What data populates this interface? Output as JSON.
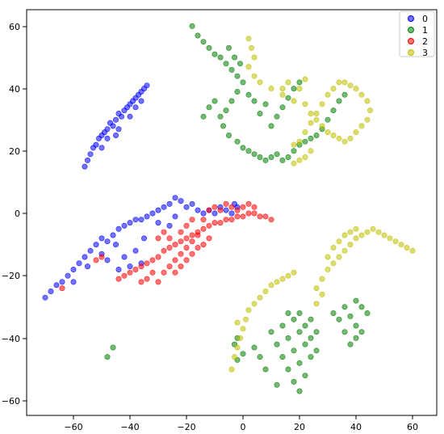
{
  "chart_data": {
    "type": "scatter",
    "title": "",
    "xlabel": "",
    "ylabel": "",
    "xlim": [
      -76,
      66
    ],
    "ylim": [
      -65,
      66
    ],
    "x_ticks": [
      "−60",
      "−40",
      "−20",
      "0",
      "20",
      "40",
      "60"
    ],
    "y_ticks": [
      "−60",
      "−40",
      "−20",
      "0",
      "20",
      "40",
      "60"
    ],
    "grid": false,
    "legend_position": "top-right",
    "series": [
      {
        "name": "0",
        "color": "#0000ff",
        "points": [
          [
            -56,
            15
          ],
          [
            -55,
            17
          ],
          [
            -54,
            19
          ],
          [
            -53,
            21
          ],
          [
            -52,
            22
          ],
          [
            -51,
            24
          ],
          [
            -50,
            25
          ],
          [
            -49,
            26
          ],
          [
            -48,
            27
          ],
          [
            -47,
            29
          ],
          [
            -46,
            28
          ],
          [
            -45,
            30
          ],
          [
            -44,
            32
          ],
          [
            -43,
            31
          ],
          [
            -42,
            33
          ],
          [
            -41,
            34
          ],
          [
            -40,
            35
          ],
          [
            -39,
            36
          ],
          [
            -38,
            37
          ],
          [
            -37,
            38
          ],
          [
            -36,
            39
          ],
          [
            -35,
            40
          ],
          [
            -34,
            41
          ],
          [
            -36,
            36
          ],
          [
            -40,
            31
          ],
          [
            -44,
            27
          ],
          [
            -48,
            24
          ],
          [
            -50,
            21
          ],
          [
            -45,
            25
          ],
          [
            -38,
            34
          ],
          [
            -70,
            -27
          ],
          [
            -68,
            -25
          ],
          [
            -66,
            -23
          ],
          [
            -64,
            -22
          ],
          [
            -62,
            -20
          ],
          [
            -60,
            -18
          ],
          [
            -58,
            -16
          ],
          [
            -56,
            -14
          ],
          [
            -54,
            -12
          ],
          [
            -52,
            -10
          ],
          [
            -50,
            -8
          ],
          [
            -48,
            -9
          ],
          [
            -46,
            -7
          ],
          [
            -44,
            -5
          ],
          [
            -42,
            -4
          ],
          [
            -40,
            -3
          ],
          [
            -38,
            -2
          ],
          [
            -36,
            -2
          ],
          [
            -34,
            -1
          ],
          [
            -32,
            0
          ],
          [
            -30,
            1
          ],
          [
            -28,
            2
          ],
          [
            -26,
            3
          ],
          [
            -24,
            5
          ],
          [
            -22,
            4
          ],
          [
            -20,
            2
          ],
          [
            -18,
            3
          ],
          [
            -16,
            1
          ],
          [
            -14,
            0
          ],
          [
            -12,
            1
          ],
          [
            -10,
            0
          ],
          [
            -8,
            2
          ],
          [
            -6,
            1
          ],
          [
            -4,
            0
          ],
          [
            -2,
            2
          ],
          [
            -3,
            3
          ],
          [
            -60,
            -22
          ],
          [
            -55,
            -17
          ],
          [
            -50,
            -13
          ],
          [
            -45,
            -10
          ],
          [
            -42,
            -14
          ],
          [
            -38,
            -12
          ],
          [
            -35,
            -8
          ],
          [
            -48,
            -15
          ],
          [
            -44,
            -18
          ],
          [
            -40,
            -17
          ],
          [
            -36,
            -16
          ],
          [
            -26,
            -4
          ],
          [
            -24,
            -1
          ],
          [
            -30,
            -3
          ]
        ]
      },
      {
        "name": "1",
        "color": "#008000",
        "points": [
          [
            -18,
            60
          ],
          [
            -16,
            57
          ],
          [
            -14,
            55
          ],
          [
            -12,
            53
          ],
          [
            -10,
            51
          ],
          [
            -8,
            50
          ],
          [
            -6,
            48
          ],
          [
            -4,
            46
          ],
          [
            -2,
            44
          ],
          [
            0,
            42
          ],
          [
            -2,
            39
          ],
          [
            -4,
            36
          ],
          [
            -6,
            33
          ],
          [
            -8,
            31
          ],
          [
            -7,
            28
          ],
          [
            -5,
            25
          ],
          [
            -2,
            23
          ],
          [
            0,
            21
          ],
          [
            2,
            20
          ],
          [
            4,
            19
          ],
          [
            6,
            18
          ],
          [
            8,
            17
          ],
          [
            10,
            18
          ],
          [
            12,
            19
          ],
          [
            14,
            17
          ],
          [
            16,
            18
          ],
          [
            18,
            20
          ],
          [
            20,
            22
          ],
          [
            22,
            23
          ],
          [
            24,
            24
          ],
          [
            26,
            25
          ],
          [
            28,
            27
          ],
          [
            30,
            30
          ],
          [
            32,
            33
          ],
          [
            34,
            36
          ],
          [
            36,
            38
          ],
          [
            10,
            28
          ],
          [
            12,
            31
          ],
          [
            14,
            34
          ],
          [
            16,
            37
          ],
          [
            18,
            40
          ],
          [
            20,
            42
          ],
          [
            6,
            32
          ],
          [
            8,
            35
          ],
          [
            4,
            36
          ],
          [
            2,
            38
          ],
          [
            -10,
            36
          ],
          [
            -12,
            34
          ],
          [
            -14,
            31
          ],
          [
            -5,
            53
          ],
          [
            -3,
            50
          ],
          [
            -1,
            48
          ],
          [
            -48,
            -46
          ],
          [
            -46,
            -43
          ],
          [
            -3,
            -42
          ],
          [
            -2,
            -40
          ],
          [
            10,
            -38
          ],
          [
            12,
            -42
          ],
          [
            14,
            -46
          ],
          [
            16,
            -50
          ],
          [
            18,
            -54
          ],
          [
            20,
            -57
          ],
          [
            22,
            -52
          ],
          [
            20,
            -48
          ],
          [
            18,
            -44
          ],
          [
            16,
            -40
          ],
          [
            14,
            -36
          ],
          [
            16,
            -32
          ],
          [
            18,
            -34
          ],
          [
            20,
            -38
          ],
          [
            22,
            -42
          ],
          [
            24,
            -46
          ],
          [
            26,
            -44
          ],
          [
            24,
            -40
          ],
          [
            22,
            -36
          ],
          [
            20,
            -32
          ],
          [
            24,
            -34
          ],
          [
            26,
            -38
          ],
          [
            36,
            -30
          ],
          [
            38,
            -33
          ],
          [
            40,
            -36
          ],
          [
            42,
            -38
          ],
          [
            40,
            -40
          ],
          [
            38,
            -42
          ],
          [
            36,
            -38
          ],
          [
            34,
            -34
          ],
          [
            32,
            -32
          ],
          [
            40,
            -28
          ],
          [
            42,
            -30
          ],
          [
            44,
            -32
          ],
          [
            -2,
            -47
          ],
          [
            0,
            -45
          ],
          [
            4,
            -43
          ],
          [
            6,
            -46
          ],
          [
            8,
            -50
          ],
          [
            12,
            -55
          ]
        ]
      },
      {
        "name": "2",
        "color": "#ff0000",
        "points": [
          [
            -44,
            -21
          ],
          [
            -42,
            -20
          ],
          [
            -40,
            -19
          ],
          [
            -38,
            -18
          ],
          [
            -36,
            -17
          ],
          [
            -34,
            -16
          ],
          [
            -32,
            -15
          ],
          [
            -30,
            -14
          ],
          [
            -28,
            -12
          ],
          [
            -26,
            -11
          ],
          [
            -24,
            -10
          ],
          [
            -22,
            -9
          ],
          [
            -20,
            -8
          ],
          [
            -18,
            -7
          ],
          [
            -16,
            -6
          ],
          [
            -14,
            -5
          ],
          [
            -12,
            -4
          ],
          [
            -10,
            -3
          ],
          [
            -8,
            -3
          ],
          [
            -6,
            -2
          ],
          [
            -4,
            -2
          ],
          [
            -2,
            -1
          ],
          [
            0,
            -1
          ],
          [
            2,
            0
          ],
          [
            4,
            0
          ],
          [
            6,
            -1
          ],
          [
            8,
            -1
          ],
          [
            10,
            -2
          ],
          [
            -30,
            -22
          ],
          [
            -28,
            -19
          ],
          [
            -26,
            -17
          ],
          [
            -24,
            -15
          ],
          [
            -22,
            -13
          ],
          [
            -20,
            -11
          ],
          [
            -18,
            -9
          ],
          [
            -16,
            -7
          ],
          [
            -14,
            -10
          ],
          [
            -12,
            -8
          ],
          [
            -24,
            -19
          ],
          [
            -22,
            -17
          ],
          [
            -20,
            -15
          ],
          [
            -18,
            -13
          ],
          [
            -16,
            -11
          ],
          [
            -34,
            -21
          ],
          [
            -32,
            -19
          ],
          [
            -36,
            -22
          ],
          [
            -14,
            -2
          ],
          [
            -12,
            1
          ],
          [
            -10,
            2
          ],
          [
            -8,
            1
          ],
          [
            -6,
            3
          ],
          [
            -4,
            2
          ],
          [
            -2,
            1
          ],
          [
            0,
            2
          ],
          [
            2,
            3
          ],
          [
            4,
            2
          ],
          [
            -52,
            -15
          ],
          [
            -50,
            -14
          ],
          [
            -64,
            -24
          ],
          [
            -26,
            -8
          ],
          [
            -28,
            -6
          ],
          [
            -30,
            -8
          ],
          [
            -20,
            -4
          ],
          [
            -22,
            -6
          ],
          [
            -18,
            -2
          ]
        ]
      },
      {
        "name": "3",
        "color": "#bfbf00",
        "points": [
          [
            2,
            56
          ],
          [
            3,
            53
          ],
          [
            4,
            50
          ],
          [
            2,
            47
          ],
          [
            4,
            44
          ],
          [
            6,
            42
          ],
          [
            10,
            40
          ],
          [
            14,
            38
          ],
          [
            18,
            36
          ],
          [
            22,
            35
          ],
          [
            24,
            32
          ],
          [
            26,
            30
          ],
          [
            28,
            28
          ],
          [
            30,
            26
          ],
          [
            32,
            25
          ],
          [
            34,
            24
          ],
          [
            36,
            23
          ],
          [
            38,
            24
          ],
          [
            40,
            26
          ],
          [
            42,
            28
          ],
          [
            44,
            30
          ],
          [
            45,
            33
          ],
          [
            44,
            36
          ],
          [
            42,
            38
          ],
          [
            40,
            40
          ],
          [
            38,
            41
          ],
          [
            36,
            42
          ],
          [
            34,
            42
          ],
          [
            32,
            40
          ],
          [
            30,
            38
          ],
          [
            28,
            35
          ],
          [
            26,
            32
          ],
          [
            24,
            29
          ],
          [
            22,
            26
          ],
          [
            20,
            23
          ],
          [
            18,
            22
          ],
          [
            22,
            18
          ],
          [
            24,
            20
          ],
          [
            20,
            17
          ],
          [
            18,
            16
          ],
          [
            20,
            40
          ],
          [
            22,
            43
          ],
          [
            16,
            42
          ],
          [
            14,
            40
          ],
          [
            -4,
            -50
          ],
          [
            -3,
            -46
          ],
          [
            -2,
            -43
          ],
          [
            -1,
            -40
          ],
          [
            0,
            -37
          ],
          [
            1,
            -34
          ],
          [
            2,
            -31
          ],
          [
            4,
            -29
          ],
          [
            6,
            -27
          ],
          [
            8,
            -25
          ],
          [
            10,
            -23
          ],
          [
            12,
            -22
          ],
          [
            14,
            -21
          ],
          [
            16,
            -20
          ],
          [
            18,
            -19
          ],
          [
            26,
            -24
          ],
          [
            28,
            -21
          ],
          [
            30,
            -18
          ],
          [
            32,
            -16
          ],
          [
            34,
            -14
          ],
          [
            36,
            -12
          ],
          [
            38,
            -10
          ],
          [
            40,
            -8
          ],
          [
            42,
            -7
          ],
          [
            44,
            -6
          ],
          [
            46,
            -5
          ],
          [
            48,
            -6
          ],
          [
            50,
            -7
          ],
          [
            52,
            -8
          ],
          [
            54,
            -9
          ],
          [
            56,
            -10
          ],
          [
            58,
            -11
          ],
          [
            60,
            -12
          ],
          [
            30,
            -14
          ],
          [
            32,
            -11
          ],
          [
            34,
            -9
          ],
          [
            36,
            -7
          ],
          [
            38,
            -6
          ],
          [
            40,
            -5
          ],
          [
            28,
            -26
          ],
          [
            26,
            -29
          ],
          [
            -2,
            -35
          ]
        ]
      }
    ]
  },
  "legend": {
    "items": [
      {
        "label": "0",
        "color": "#0000ff"
      },
      {
        "label": "1",
        "color": "#008000"
      },
      {
        "label": "2",
        "color": "#ff0000"
      },
      {
        "label": "3",
        "color": "#bfbf00"
      }
    ]
  }
}
